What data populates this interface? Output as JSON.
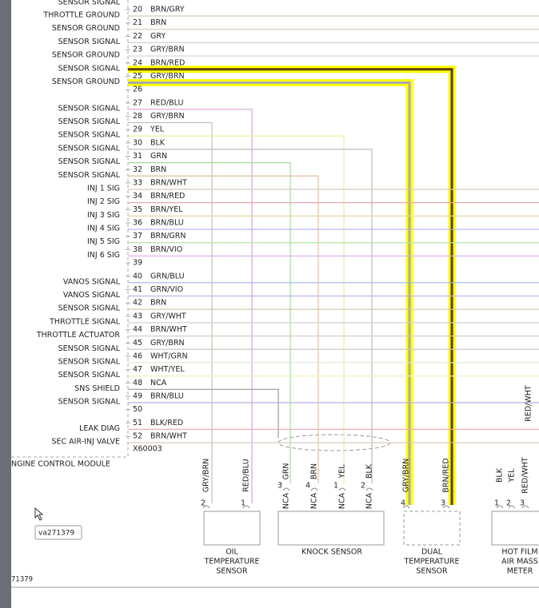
{
  "top_label": "SENSOR SIGNAL",
  "pins": [
    {
      "number": 20,
      "label": "THROTTLE GROUND",
      "wire": "BRN/GRY"
    },
    {
      "number": 21,
      "label": "SENSOR GROUND",
      "wire": "BRN"
    },
    {
      "number": 22,
      "label": "SENSOR SIGNAL",
      "wire": "GRY"
    },
    {
      "number": 23,
      "label": "SENSOR GROUND",
      "wire": "GRY/BRN"
    },
    {
      "number": 24,
      "label": "SENSOR SIGNAL",
      "wire": "BRN/RED"
    },
    {
      "number": 25,
      "label": "SENSOR GROUND",
      "wire": "GRY/BRN"
    },
    {
      "number": 26
    },
    {
      "number": 27,
      "label": "SENSOR SIGNAL",
      "wire": "RED/BLU"
    },
    {
      "number": 28,
      "label": "SENSOR SIGNAL",
      "wire": "GRY/BRN"
    },
    {
      "number": 29,
      "label": "SENSOR SIGNAL",
      "wire": "YEL"
    },
    {
      "number": 30,
      "label": "SENSOR SIGNAL",
      "wire": "BLK"
    },
    {
      "number": 31,
      "label": "SENSOR SIGNAL",
      "wire": "GRN"
    },
    {
      "number": 32,
      "label": "SENSOR SIGNAL",
      "wire": "BRN"
    },
    {
      "number": 33,
      "label": "INJ 1 SIG",
      "wire": "BRN/WHT"
    },
    {
      "number": 34,
      "label": "INJ 2 SIG",
      "wire": "BRN/RED"
    },
    {
      "number": 35,
      "label": "INJ 3 SIG",
      "wire": "BRN/YEL"
    },
    {
      "number": 36,
      "label": "INJ 4 SIG",
      "wire": "BRN/BLU"
    },
    {
      "number": 37,
      "label": "INJ 5 SIG",
      "wire": "BRN/GRN"
    },
    {
      "number": 38,
      "label": "INJ 6 SIG",
      "wire": "BRN/VIO"
    },
    {
      "number": 39
    },
    {
      "number": 40,
      "label": "VANOS SIGNAL",
      "wire": "GRN/BLU"
    },
    {
      "number": 41,
      "label": "VANOS SIGNAL",
      "wire": "GRN/VIO"
    },
    {
      "number": 42,
      "label": "SENSOR SIGNAL",
      "wire": "BRN"
    },
    {
      "number": 43,
      "label": "THROTTLE SIGNAL",
      "wire": "GRY/WHT"
    },
    {
      "number": 44,
      "label": "THROTTLE ACTUATOR",
      "wire": "BRN/WHT"
    },
    {
      "number": 45,
      "label": "SENSOR SIGNAL",
      "wire": "GRY/BRN"
    },
    {
      "number": 46,
      "label": "SENSOR SIGNAL",
      "wire": "WHT/GRN"
    },
    {
      "number": 47,
      "label": "SENSOR SIGNAL",
      "wire": "WHT/YEL"
    },
    {
      "number": 48,
      "label": "SNS SHIELD",
      "wire": "NCA"
    },
    {
      "number": 49,
      "label": "SENSOR SIGNAL",
      "wire": "BRN/BLU"
    },
    {
      "number": 50
    },
    {
      "number": 51,
      "label": "LEAK DIAG",
      "wire": "BLK/RED"
    },
    {
      "number": 52,
      "label": "SEC AIR-INJ VALVE",
      "wire": "BRN/WHT"
    }
  ],
  "connector": "X60003",
  "module": "NGINE CONTROL MODULE",
  "figure_id": "71379",
  "tooltip": "va271379",
  "splice_label": "RED/WHT",
  "components": [
    {
      "name": [
        "OIL",
        "TEMPERATURE",
        "SENSOR"
      ],
      "terminals": [
        {
          "wire": "GRY/BRN",
          "pin": 2
        },
        {
          "wire": "RED/BLU",
          "pin": 1
        }
      ]
    },
    {
      "name": [
        "KNOCK SENSOR"
      ],
      "terminals": [
        {
          "wire": "GRN",
          "pin": 3,
          "code": "NCA"
        },
        {
          "wire": "BRN",
          "pin": 4,
          "code": "NCA"
        },
        {
          "wire": "YEL",
          "pin": 1,
          "code": "NCA"
        },
        {
          "wire": "BLK",
          "pin": 2,
          "code": "NCA"
        }
      ]
    },
    {
      "name": [
        "DUAL",
        "TEMPERATURE",
        "SENSOR"
      ],
      "terminals": [
        {
          "wire": "GRY/BRN",
          "pin": 4
        },
        {
          "wire": "BRN/RED",
          "pin": 3
        }
      ]
    },
    {
      "name": [
        "HOT FILM",
        "AIR MASS",
        "METER"
      ],
      "terminals": [
        {
          "wire": "BLK",
          "pin": 1
        },
        {
          "wire": "YEL",
          "pin": 2
        },
        {
          "wire": "RED/WHT",
          "pin": 3
        }
      ]
    }
  ]
}
